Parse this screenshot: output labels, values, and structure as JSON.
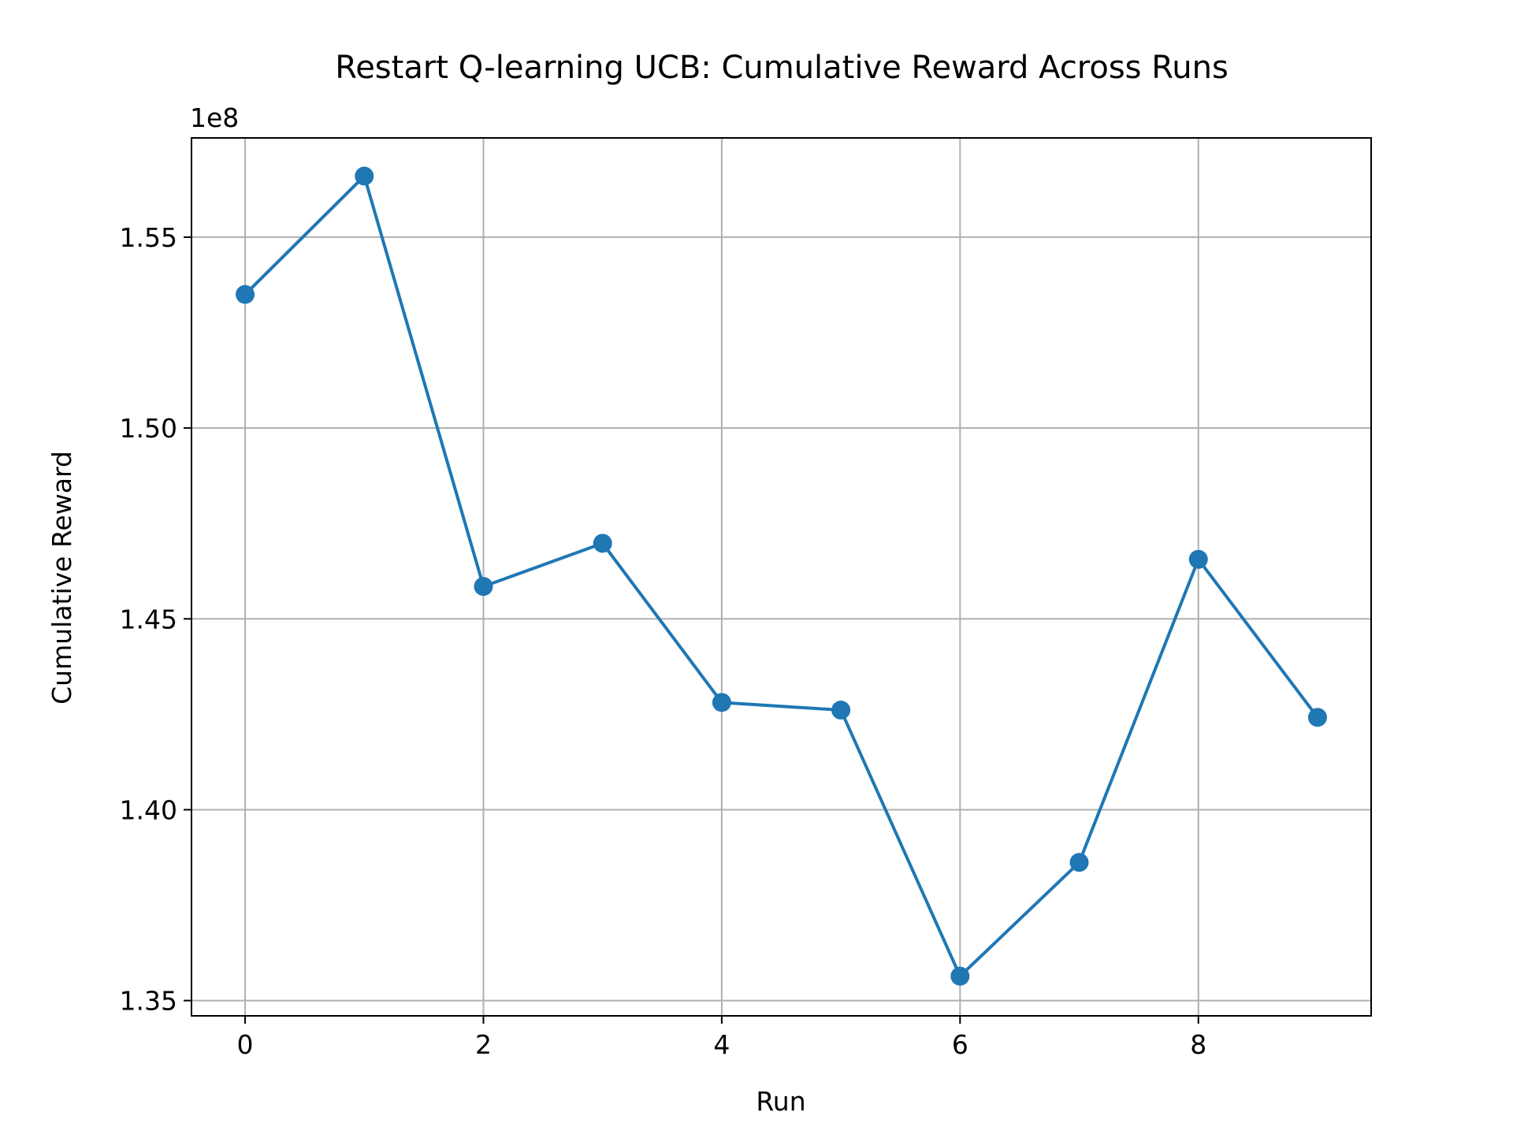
{
  "chart_data": {
    "type": "line",
    "title": "Restart Q-learning UCB: Cumulative Reward Across Runs",
    "xlabel": "Run",
    "ylabel": "Cumulative Reward",
    "y_offset_label": "1e8",
    "x": [
      0,
      1,
      2,
      3,
      4,
      5,
      6,
      7,
      8,
      9
    ],
    "series": [
      {
        "values": [
          153500000,
          156600000,
          145850000,
          146980000,
          142810000,
          142610000,
          135640000,
          138620000,
          146560000,
          142420000
        ],
        "color": "#1f77b4",
        "marker": "circle"
      }
    ],
    "xlim": [
      -0.45,
      9.45
    ],
    "ylim": [
      134600000,
      157600000
    ],
    "x_ticks": [
      0,
      2,
      4,
      6,
      8
    ],
    "x_tick_labels": [
      "0",
      "2",
      "4",
      "6",
      "8"
    ],
    "y_ticks": [
      135000000,
      140000000,
      145000000,
      150000000,
      155000000
    ],
    "y_tick_labels": [
      "1.35",
      "1.40",
      "1.45",
      "1.50",
      "1.55"
    ],
    "grid": true,
    "grid_color": "#b0b0b0",
    "line_color": "#1f77b4"
  }
}
